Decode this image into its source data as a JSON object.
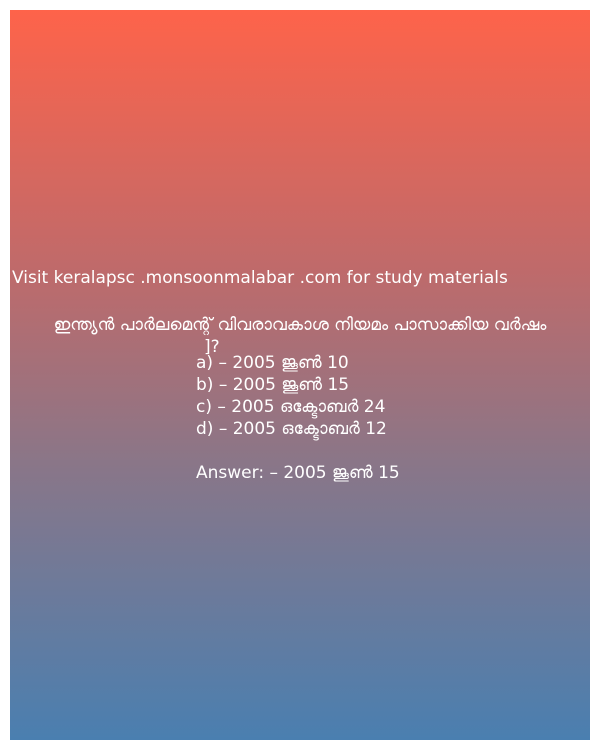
{
  "site_line": "Visit keralapsc .monsoonmalabar .com for study materials",
  "question": {
    "text": "ഇന്ത്യൻ പാർലമെന്റ് വിവരാവകാശ നിയമം പാസാക്കിയ വർഷം",
    "tail": "]?"
  },
  "options": [
    "a) – 2005 ജൂൺ 10",
    "b) – 2005 ജൂൺ 15",
    "c) – 2005 ഒക്ടോബർ 24",
    "d) – 2005 ഒക്ടോബർ 12"
  ],
  "answer": "Answer: – 2005 ജൂൺ 15",
  "colors": {
    "gradient_top": "#fe634a",
    "gradient_bottom": "#4a7fb0",
    "text": "#ffffff"
  }
}
